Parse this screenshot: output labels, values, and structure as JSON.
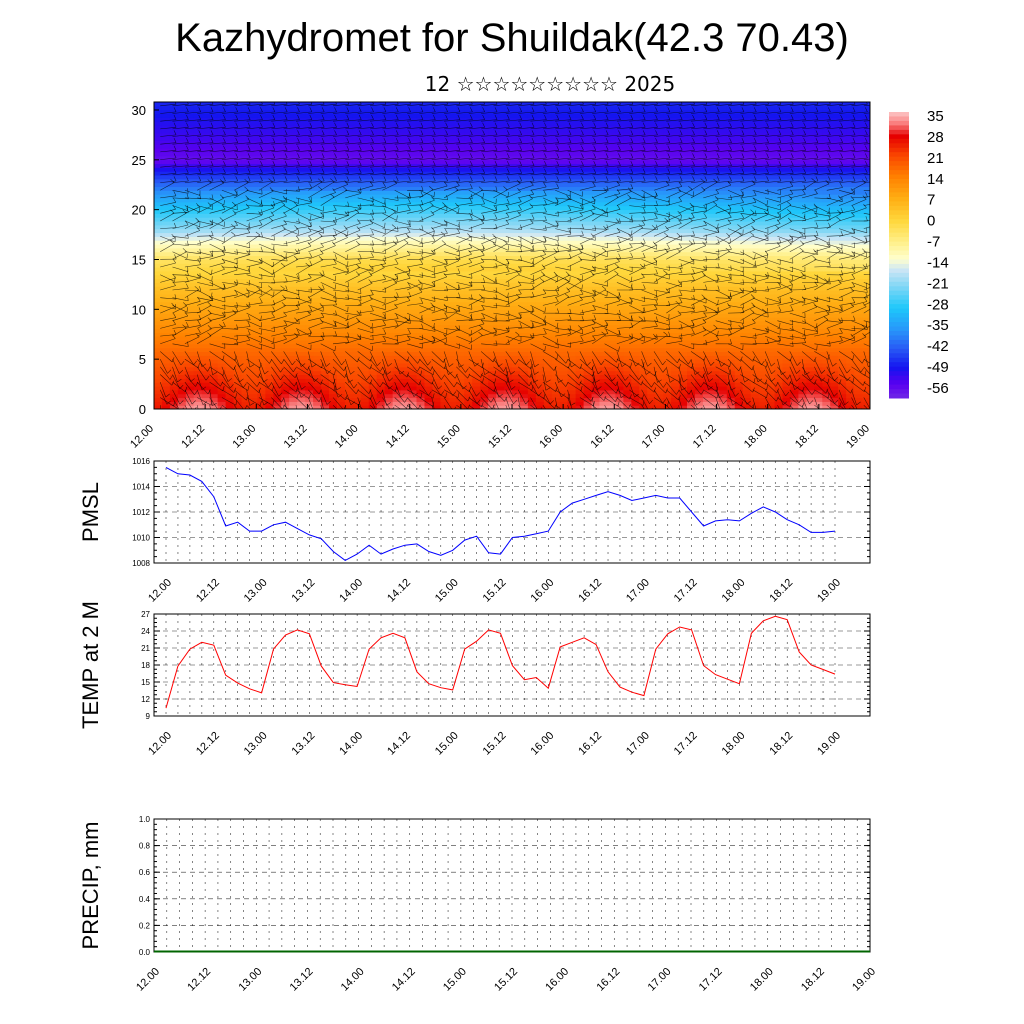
{
  "header": {
    "title": "Kazhydromet for Shuildak(42.3 70.43)",
    "subtitle": "12 ☆☆☆☆☆☆☆☆☆ 2025"
  },
  "chart_data": [
    {
      "id": "cross-section",
      "type": "heatmap",
      "title": "",
      "xlabel": "",
      "ylabel": "",
      "x_tick_labels": [
        "12.00",
        "12.12",
        "13.00",
        "13.12",
        "14.00",
        "14.12",
        "15.00",
        "15.12",
        "16.00",
        "16.12",
        "17.00",
        "17.12",
        "18.00",
        "18.12",
        "19.00"
      ],
      "y_ticks": [
        0,
        5,
        10,
        15,
        20,
        25,
        30
      ],
      "y_tick_labels": [
        "0",
        "5",
        "10",
        "15",
        "20",
        "25",
        "30"
      ],
      "ylim": [
        0,
        30.8
      ],
      "colorbar_labels": [
        "35",
        "28",
        "21",
        "14",
        "7",
        "0",
        "-7",
        "-14",
        "-21",
        "-28",
        "-35",
        "-42",
        "-49",
        "-56"
      ],
      "colorbar_range": [
        -63,
        42
      ],
      "wind_barbs": true,
      "temperature_profile": {
        "levels_km": [
          0,
          3,
          6,
          9,
          12,
          15,
          17,
          18,
          20,
          22,
          24,
          25,
          27,
          30.8
        ],
        "values_c": [
          35,
          28,
          21,
          14,
          7,
          -2,
          -14,
          -21,
          -30,
          -40,
          -52,
          -60,
          -56,
          -50
        ],
        "diurnal_amplitude_c": 5
      }
    },
    {
      "id": "pmsl",
      "type": "line",
      "ylabel": "PMSL",
      "ylim": [
        1008,
        1016
      ],
      "y_ticks": [
        1008,
        1010,
        1012,
        1014,
        1016
      ],
      "y_tick_labels": [
        "1008",
        "1010",
        "1012",
        "1014",
        "1016"
      ],
      "x_tick_labels": [
        "12.00",
        "12.12",
        "13.00",
        "13.12",
        "14.00",
        "14.12",
        "15.00",
        "15.12",
        "16.00",
        "16.12",
        "17.00",
        "17.12",
        "18.00",
        "18.12",
        "19.00"
      ],
      "grid": true,
      "color": "#0000ff",
      "series": [
        {
          "values": [
            1015.5,
            1015.0,
            1014.9,
            1014.4,
            1013.2,
            1010.9,
            1011.2,
            1010.5,
            1010.5,
            1011.0,
            1011.2,
            1010.7,
            1010.2,
            1009.9,
            1008.9,
            1008.2,
            1008.7,
            1009.4,
            1008.7,
            1009.1,
            1009.4,
            1009.5,
            1008.9,
            1008.6,
            1009.0,
            1009.8,
            1010.1,
            1008.8,
            1008.7,
            1010.0,
            1010.1,
            1010.3,
            1010.5,
            1012.0,
            1012.7,
            1013.0,
            1013.3,
            1013.6,
            1013.3,
            1012.9,
            1013.1,
            1013.3,
            1013.1,
            1013.1,
            1012.0,
            1010.9,
            1011.3,
            1011.4,
            1011.3,
            1011.9,
            1012.4,
            1012.0,
            1011.4,
            1011.0,
            1010.4,
            1010.4,
            1010.5
          ]
        }
      ]
    },
    {
      "id": "temp2m",
      "type": "line",
      "ylabel": "TEMP at 2 M",
      "ylim": [
        9,
        27
      ],
      "y_ticks": [
        9,
        12,
        15,
        18,
        21,
        24,
        27
      ],
      "y_tick_labels": [
        "9",
        "12",
        "15",
        "18",
        "21",
        "24",
        "27"
      ],
      "x_tick_labels": [
        "12.00",
        "12.12",
        "13.00",
        "13.12",
        "14.00",
        "14.12",
        "15.00",
        "15.12",
        "16.00",
        "16.12",
        "17.00",
        "17.12",
        "18.00",
        "18.12",
        "19.00"
      ],
      "grid": true,
      "color": "#ff0000",
      "series": [
        {
          "values": [
            10.4,
            17.8,
            20.8,
            22.0,
            21.5,
            16.2,
            14.8,
            13.8,
            13.1,
            20.8,
            23.3,
            24.2,
            23.5,
            17.8,
            14.9,
            14.5,
            14.2,
            20.8,
            22.8,
            23.6,
            22.8,
            16.8,
            14.7,
            14.0,
            13.6,
            20.8,
            22.2,
            24.2,
            23.6,
            17.9,
            15.4,
            15.8,
            13.9,
            21.2,
            22.0,
            22.8,
            21.6,
            16.8,
            14.1,
            13.2,
            12.6,
            20.8,
            23.5,
            24.7,
            24.2,
            17.9,
            16.3,
            15.5,
            14.7,
            23.6,
            25.8,
            26.6,
            26.0,
            20.3,
            18.0,
            17.2,
            16.4
          ]
        }
      ]
    },
    {
      "id": "precip",
      "type": "line",
      "ylabel": "PRECIP, mm",
      "ylim": [
        0,
        1
      ],
      "y_ticks": [
        0,
        0.2,
        0.4,
        0.6,
        0.8,
        1.0
      ],
      "y_tick_labels": [
        "0.0",
        "0.2",
        "0.4",
        "0.6",
        "0.8",
        "1.0"
      ],
      "x_tick_labels": [
        "12.00",
        "12.12",
        "13.00",
        "13.12",
        "14.00",
        "14.12",
        "15.00",
        "15.12",
        "16.00",
        "16.12",
        "17.00",
        "17.12",
        "18.00",
        "18.12",
        "19.00"
      ],
      "grid": true,
      "color": "#006400",
      "series": [
        {
          "values": [
            0,
            0,
            0,
            0,
            0,
            0,
            0,
            0,
            0,
            0,
            0,
            0,
            0,
            0,
            0
          ]
        }
      ]
    }
  ]
}
